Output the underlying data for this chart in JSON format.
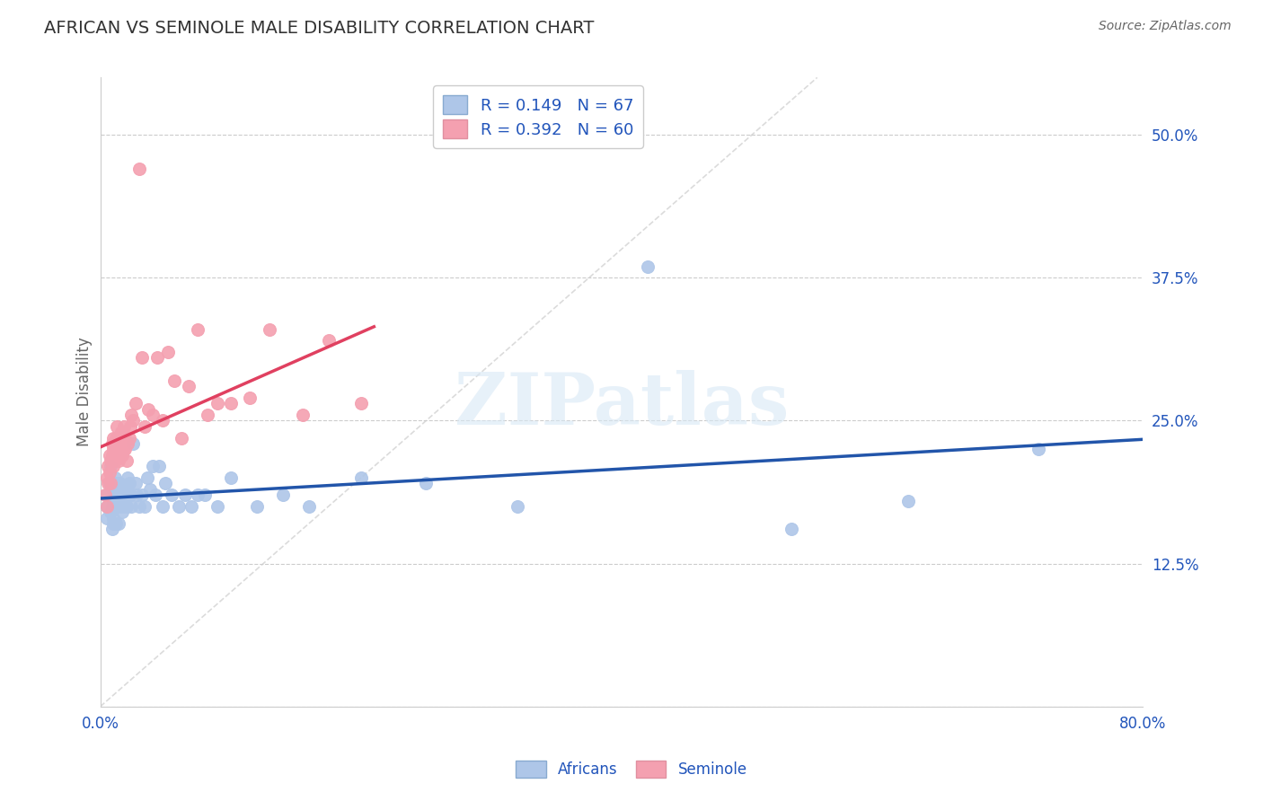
{
  "title": "AFRICAN VS SEMINOLE MALE DISABILITY CORRELATION CHART",
  "source_text": "Source: ZipAtlas.com",
  "ylabel": "Male Disability",
  "xlim": [
    0.0,
    0.8
  ],
  "ylim": [
    0.0,
    0.55
  ],
  "y_ticks": [
    0.0,
    0.125,
    0.25,
    0.375,
    0.5
  ],
  "y_tick_labels": [
    "",
    "12.5%",
    "25.0%",
    "37.5%",
    "50.0%"
  ],
  "africans_R": 0.149,
  "africans_N": 67,
  "seminole_R": 0.392,
  "seminole_N": 60,
  "africans_color": "#aec6e8",
  "seminole_color": "#f4a0b0",
  "africans_line_color": "#2255aa",
  "seminole_line_color": "#e04060",
  "diagonal_color": "#cccccc",
  "watermark": "ZIPatlas",
  "background_color": "#ffffff",
  "legend_color": "#2255bb",
  "africans_x": [
    0.005,
    0.005,
    0.005,
    0.007,
    0.008,
    0.008,
    0.009,
    0.009,
    0.009,
    0.01,
    0.01,
    0.01,
    0.01,
    0.011,
    0.011,
    0.012,
    0.012,
    0.012,
    0.013,
    0.013,
    0.014,
    0.014,
    0.015,
    0.015,
    0.016,
    0.017,
    0.017,
    0.018,
    0.018,
    0.019,
    0.02,
    0.02,
    0.021,
    0.022,
    0.023,
    0.024,
    0.025,
    0.027,
    0.028,
    0.03,
    0.032,
    0.034,
    0.036,
    0.038,
    0.04,
    0.042,
    0.045,
    0.048,
    0.05,
    0.055,
    0.06,
    0.065,
    0.07,
    0.075,
    0.08,
    0.09,
    0.1,
    0.12,
    0.14,
    0.16,
    0.2,
    0.25,
    0.32,
    0.42,
    0.53,
    0.62,
    0.72
  ],
  "africans_y": [
    0.175,
    0.185,
    0.165,
    0.195,
    0.21,
    0.17,
    0.175,
    0.19,
    0.155,
    0.18,
    0.165,
    0.175,
    0.16,
    0.2,
    0.185,
    0.195,
    0.175,
    0.16,
    0.175,
    0.19,
    0.185,
    0.16,
    0.175,
    0.195,
    0.18,
    0.17,
    0.19,
    0.175,
    0.185,
    0.18,
    0.175,
    0.19,
    0.2,
    0.195,
    0.185,
    0.175,
    0.23,
    0.195,
    0.185,
    0.175,
    0.185,
    0.175,
    0.2,
    0.19,
    0.21,
    0.185,
    0.21,
    0.175,
    0.195,
    0.185,
    0.175,
    0.185,
    0.175,
    0.185,
    0.185,
    0.175,
    0.2,
    0.175,
    0.185,
    0.175,
    0.2,
    0.195,
    0.175,
    0.385,
    0.155,
    0.18,
    0.225
  ],
  "seminole_x": [
    0.004,
    0.005,
    0.005,
    0.006,
    0.006,
    0.007,
    0.007,
    0.008,
    0.008,
    0.009,
    0.009,
    0.009,
    0.01,
    0.01,
    0.01,
    0.011,
    0.011,
    0.012,
    0.012,
    0.013,
    0.013,
    0.014,
    0.014,
    0.015,
    0.015,
    0.016,
    0.016,
    0.017,
    0.017,
    0.018,
    0.018,
    0.019,
    0.019,
    0.02,
    0.021,
    0.022,
    0.023,
    0.024,
    0.025,
    0.027,
    0.03,
    0.032,
    0.034,
    0.037,
    0.04,
    0.044,
    0.048,
    0.052,
    0.057,
    0.062,
    0.068,
    0.075,
    0.082,
    0.09,
    0.1,
    0.115,
    0.13,
    0.155,
    0.175,
    0.2
  ],
  "seminole_y": [
    0.185,
    0.2,
    0.175,
    0.21,
    0.195,
    0.22,
    0.205,
    0.215,
    0.195,
    0.22,
    0.23,
    0.215,
    0.225,
    0.235,
    0.21,
    0.215,
    0.22,
    0.225,
    0.235,
    0.245,
    0.225,
    0.215,
    0.23,
    0.235,
    0.22,
    0.24,
    0.225,
    0.235,
    0.22,
    0.245,
    0.225,
    0.235,
    0.225,
    0.215,
    0.23,
    0.235,
    0.245,
    0.255,
    0.25,
    0.265,
    0.47,
    0.305,
    0.245,
    0.26,
    0.255,
    0.305,
    0.25,
    0.31,
    0.285,
    0.235,
    0.28,
    0.33,
    0.255,
    0.265,
    0.265,
    0.27,
    0.33,
    0.255,
    0.32,
    0.265
  ]
}
